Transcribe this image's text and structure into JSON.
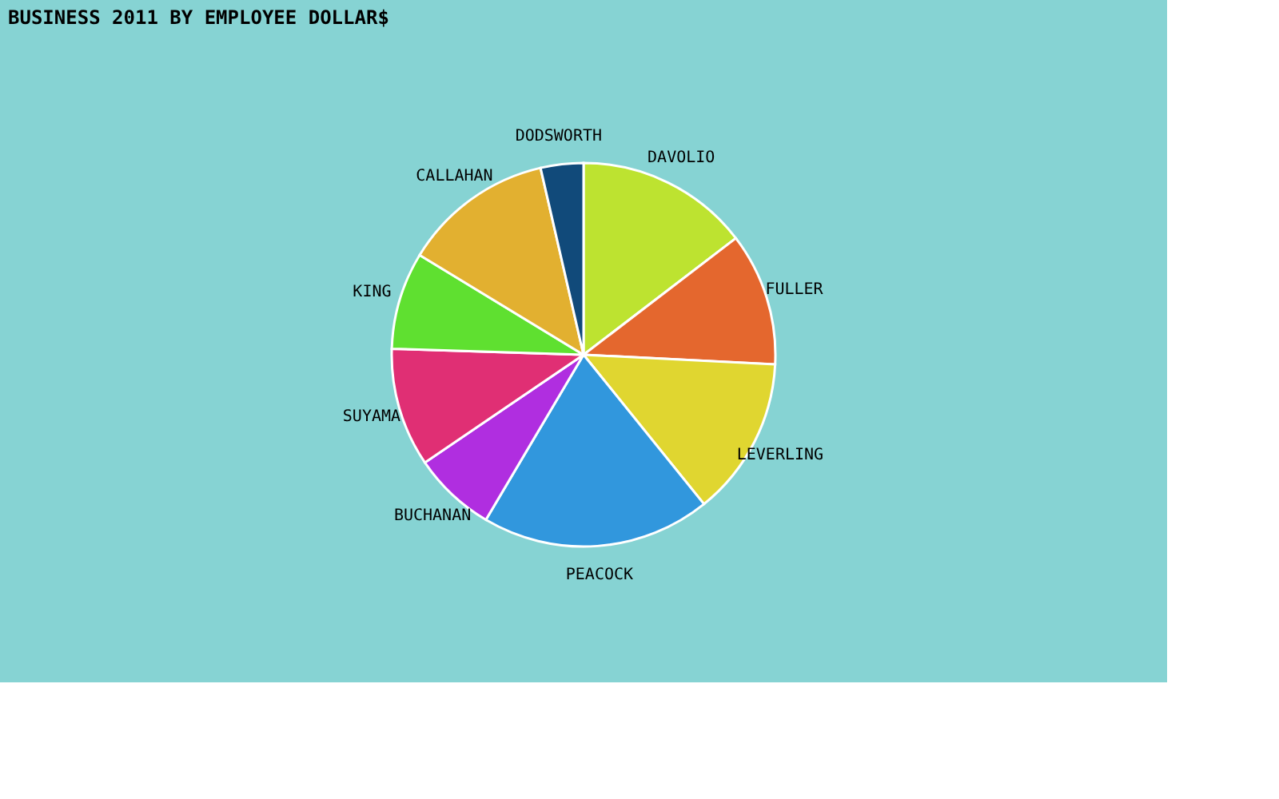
{
  "chart_data": {
    "type": "pie",
    "title": "BUSINESS 2011 BY  EMPLOYEE   DOLLAR$",
    "legend": false,
    "categories": [
      "DAVOLIO",
      "FULLER",
      "LEVERLING",
      "PEACOCK",
      "BUCHANAN",
      "SUYAMA",
      "KING",
      "CALLAHAN",
      "DODSWORTH"
    ],
    "values": [
      14.6,
      11.2,
      13.4,
      19.3,
      7.0,
      10.0,
      8.2,
      12.7,
      3.6
    ],
    "colors": [
      "#bde330",
      "#e4672e",
      "#e0d630",
      "#3197dd",
      "#b02ee0",
      "#e02f74",
      "#5fe030",
      "#e2b030",
      "#114a7a"
    ]
  }
}
